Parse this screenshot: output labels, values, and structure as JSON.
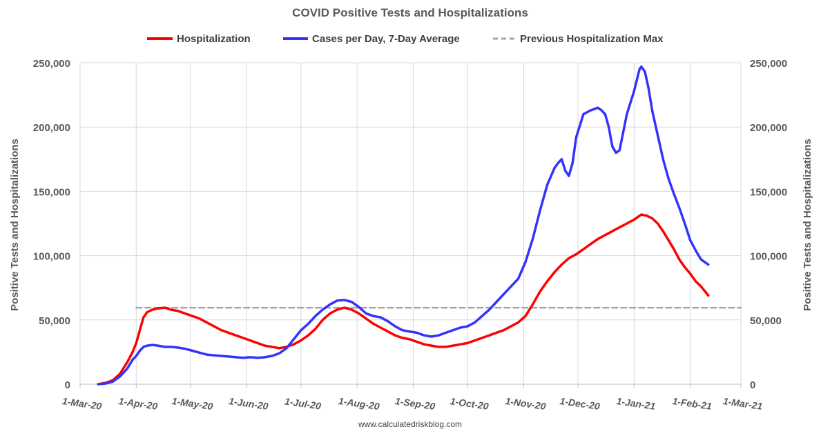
{
  "colors": {
    "hospitalization": "#ff0000",
    "cases": "#3333ff",
    "previous_max": "#a6a6a6",
    "grid": "#d9d9d9",
    "text": "#595959"
  },
  "chart_data": {
    "type": "line",
    "title": "COVID Positive Tests and Hospitalizations",
    "ylabel_left": "Positive Tests and Hospitalizations",
    "ylabel_right": "Positive Tests and Hospitalizations",
    "source": "www.calculatedriskblog.com",
    "ylim": [
      0,
      250000
    ],
    "y_ticks": [
      "0",
      "50,000",
      "100,000",
      "150,000",
      "200,000",
      "250,000"
    ],
    "y_tick_values": [
      0,
      50000,
      100000,
      150000,
      200000,
      250000
    ],
    "x_range_days": [
      0,
      365
    ],
    "x_ticks": [
      "1-Mar-20",
      "1-Apr-20",
      "1-May-20",
      "1-Jun-20",
      "1-Jul-20",
      "1-Aug-20",
      "1-Sep-20",
      "1-Oct-20",
      "1-Nov-20",
      "1-Dec-20",
      "1-Jan-21",
      "1-Feb-21",
      "1-Mar-21"
    ],
    "x_tick_days": [
      0,
      31,
      61,
      92,
      122,
      153,
      184,
      214,
      245,
      275,
      306,
      337,
      365
    ],
    "legend": [
      "Hospitalization",
      "Cases per Day, 7-Day Average",
      "Previous Hospitalization Max"
    ],
    "series": [
      {
        "name": "Hospitalization",
        "days": [
          10,
          14,
          18,
          22,
          26,
          29,
          31,
          33,
          35,
          37,
          40,
          43,
          47,
          50,
          54,
          58,
          62,
          66,
          70,
          74,
          78,
          82,
          86,
          90,
          94,
          98,
          102,
          106,
          110,
          114,
          118,
          122,
          126,
          130,
          134,
          138,
          142,
          146,
          150,
          154,
          158,
          162,
          166,
          170,
          174,
          178,
          182,
          186,
          190,
          194,
          198,
          202,
          206,
          210,
          214,
          218,
          222,
          226,
          230,
          234,
          238,
          242,
          246,
          250,
          254,
          258,
          262,
          266,
          270,
          274,
          278,
          282,
          286,
          290,
          294,
          298,
          302,
          306,
          310,
          313,
          316,
          319,
          322,
          325,
          328,
          331,
          334,
          337,
          340,
          343,
          347
        ],
        "values": [
          0,
          1000,
          3000,
          8000,
          17000,
          25000,
          32000,
          42000,
          52000,
          56000,
          58000,
          59000,
          59500,
          58000,
          57000,
          55000,
          53000,
          51000,
          48000,
          45000,
          42000,
          40000,
          38000,
          36000,
          34000,
          32000,
          30000,
          29000,
          28000,
          29000,
          31000,
          34000,
          38000,
          43000,
          50000,
          55000,
          58000,
          59500,
          58000,
          55000,
          51000,
          47000,
          44000,
          41000,
          38000,
          36000,
          35000,
          33000,
          31000,
          30000,
          29000,
          29000,
          30000,
          31000,
          32000,
          34000,
          36000,
          38000,
          40000,
          42000,
          45000,
          48000,
          53000,
          62000,
          72000,
          80000,
          87000,
          93000,
          98000,
          101000,
          105000,
          109000,
          113000,
          116000,
          119000,
          122000,
          125000,
          128000,
          132000,
          131000,
          129000,
          125000,
          119000,
          112000,
          105000,
          97000,
          91000,
          86000,
          80000,
          76000,
          69000
        ]
      },
      {
        "name": "Cases per Day, 7-Day Average",
        "days": [
          10,
          14,
          18,
          22,
          26,
          29,
          31,
          33,
          35,
          37,
          40,
          43,
          47,
          50,
          54,
          58,
          62,
          66,
          70,
          74,
          78,
          82,
          86,
          90,
          94,
          98,
          102,
          106,
          110,
          114,
          118,
          122,
          126,
          130,
          134,
          138,
          142,
          146,
          150,
          154,
          158,
          162,
          166,
          170,
          174,
          178,
          182,
          186,
          190,
          194,
          198,
          202,
          206,
          210,
          214,
          218,
          222,
          226,
          230,
          234,
          238,
          242,
          246,
          250,
          254,
          258,
          262,
          264,
          266,
          268,
          270,
          272,
          274,
          278,
          282,
          286,
          288,
          290,
          292,
          294,
          296,
          298,
          302,
          306,
          309,
          310,
          312,
          314,
          316,
          319,
          322,
          325,
          328,
          331,
          334,
          337,
          340,
          343,
          347
        ],
        "values": [
          0,
          500,
          2000,
          6000,
          12000,
          19000,
          22000,
          26000,
          29000,
          30000,
          30500,
          30000,
          29000,
          29000,
          28500,
          27500,
          26000,
          24500,
          23000,
          22500,
          22000,
          21500,
          21000,
          20500,
          21000,
          20500,
          21000,
          22000,
          24000,
          28000,
          35000,
          42000,
          47000,
          53000,
          58000,
          62000,
          65000,
          65500,
          64000,
          60000,
          55000,
          53000,
          52000,
          49000,
          45000,
          42000,
          41000,
          40000,
          38000,
          37000,
          38000,
          40000,
          42000,
          44000,
          45000,
          48000,
          53000,
          58000,
          64000,
          70000,
          76000,
          82000,
          95000,
          113000,
          135000,
          155000,
          168000,
          172000,
          175000,
          166000,
          162000,
          172000,
          192000,
          210000,
          213000,
          215000,
          213000,
          210000,
          200000,
          185000,
          180000,
          182000,
          210000,
          228000,
          245000,
          247000,
          243000,
          230000,
          213000,
          194000,
          175000,
          160000,
          148000,
          137000,
          125000,
          112000,
          104000,
          97000,
          93000
        ]
      },
      {
        "name": "Previous Hospitalization Max",
        "days": [
          31,
          365
        ],
        "values": [
          59500,
          59500
        ]
      }
    ]
  }
}
